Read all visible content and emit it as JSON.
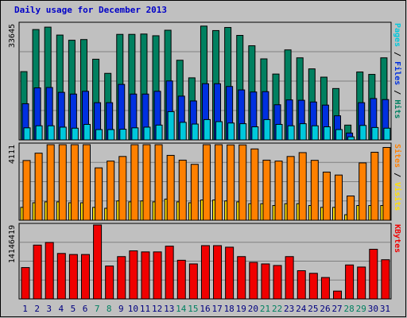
{
  "chart_data": {
    "type": "bar",
    "title": "Daily usage for December 2013",
    "categories": [
      "1",
      "2",
      "3",
      "4",
      "5",
      "6",
      "7",
      "8",
      "9",
      "10",
      "11",
      "12",
      "13",
      "14",
      "15",
      "16",
      "17",
      "18",
      "19",
      "20",
      "21",
      "22",
      "23",
      "24",
      "25",
      "26",
      "27",
      "28",
      "29",
      "30",
      "31"
    ],
    "weekend_days": [
      "7",
      "8",
      "14",
      "15",
      "21",
      "22",
      "28",
      "29"
    ],
    "panels": [
      {
        "name": "pages_files_hits",
        "max_label": "33645",
        "ylim": [
          0,
          33645
        ],
        "right_label_parts": [
          {
            "text": "Pages",
            "color": "#00c8dc"
          },
          {
            "text": " / ",
            "color": "#000000"
          },
          {
            "text": "Files",
            "color": "#0030e0"
          },
          {
            "text": " / ",
            "color": "#000000"
          },
          {
            "text": "Hits",
            "color": "#008060"
          }
        ],
        "series": [
          {
            "name": "Hits",
            "color": "#008060",
            "values": [
              19800,
              32000,
              32700,
              30400,
              28900,
              29100,
              23400,
              19300,
              30600,
              30600,
              30700,
              30200,
              31800,
              23100,
              18000,
              33000,
              31700,
              32600,
              30300,
              27300,
              23500,
              19100,
              26100,
              23800,
              20600,
              18200,
              14900,
              4300,
              19700,
              19000,
              23800
            ]
          },
          {
            "name": "Files",
            "color": "#0030e0",
            "values": [
              10500,
              15100,
              15200,
              13800,
              13300,
              14100,
              10800,
              10800,
              16100,
              13300,
              13300,
              14100,
              17100,
              12700,
              11300,
              16300,
              16300,
              15500,
              14500,
              13900,
              14000,
              10200,
              11600,
              11500,
              11000,
              10100,
              7000,
              2000,
              10800,
              12000,
              11700
            ]
          },
          {
            "name": "Pages",
            "color": "#00c8dc",
            "values": [
              3500,
              4100,
              4100,
              3700,
              3400,
              4500,
              3000,
              3000,
              3100,
              3500,
              3700,
              4300,
              8200,
              5100,
              4600,
              5900,
              5300,
              4900,
              4700,
              3800,
              5900,
              4500,
              4100,
              4700,
              4100,
              3800,
              3000,
              900,
              4200,
              3600,
              3400
            ]
          }
        ]
      },
      {
        "name": "sites_visits",
        "max_label": "4111",
        "ylim": [
          0,
          4111
        ],
        "right_label_parts": [
          {
            "text": "Sites",
            "color": "#ff8000"
          },
          {
            "text": " / ",
            "color": "#000000"
          },
          {
            "text": "Visits",
            "color": "#ffe000"
          }
        ],
        "series": [
          {
            "name": "Visits",
            "color": "#ffe000",
            "values": [
              700,
              950,
              1000,
              1000,
              950,
              950,
              700,
              650,
              1050,
              1000,
              1050,
              1000,
              1150,
              1000,
              950,
              1100,
              1100,
              1050,
              1000,
              900,
              900,
              800,
              900,
              900,
              800,
              700,
              700,
              300,
              800,
              800,
              800
            ]
          },
          {
            "name": "Sites",
            "color": "#ff8000",
            "values": [
              3250,
              3650,
              4150,
              4150,
              4130,
              4140,
              2850,
              3220,
              3470,
              4110,
              4120,
              4120,
              3530,
              3270,
              3040,
              4140,
              4150,
              4100,
              4100,
              3880,
              3270,
              3220,
              3470,
              3680,
              3260,
              2620,
              2460,
              1320,
              3120,
              3700,
              3960
            ]
          }
        ]
      },
      {
        "name": "kbytes",
        "max_label": "14146419",
        "ylim": [
          0,
          14146419
        ],
        "right_label_parts": [
          {
            "text": "KBytes",
            "color": "#f00000"
          }
        ],
        "series": [
          {
            "name": "KBytes",
            "color": "#f00000",
            "values": [
              6000000,
              10300000,
              10800000,
              8700000,
              8500000,
              8500000,
              14146419,
              6300000,
              8100000,
              9200000,
              9000000,
              9000000,
              10100000,
              7400000,
              6700000,
              10200000,
              10200000,
              9900000,
              8100000,
              7000000,
              6700000,
              6400000,
              8100000,
              5400000,
              4900000,
              4100000,
              1500000,
              6500000,
              6100000,
              9500000,
              7500000
            ]
          }
        ]
      }
    ]
  }
}
